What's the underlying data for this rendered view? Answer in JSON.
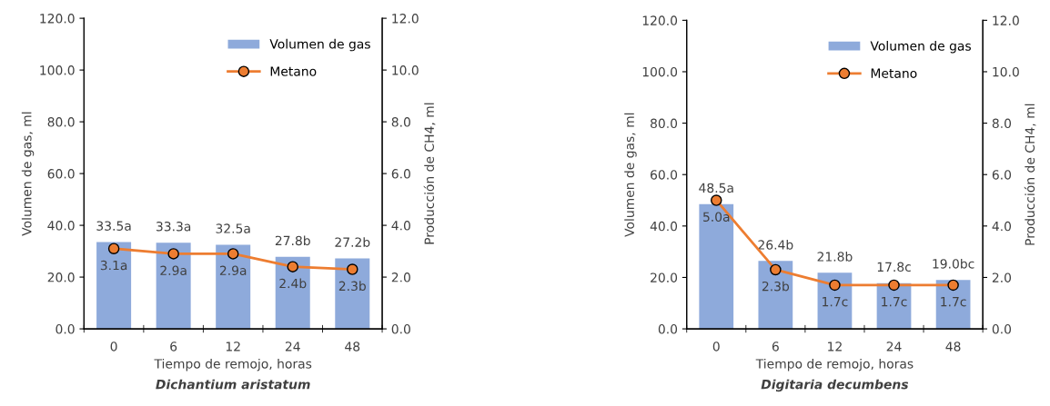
{
  "chart_data": [
    {
      "type": "bar",
      "categories": [
        "0",
        "6",
        "12",
        "24",
        "48"
      ],
      "xlabel": "Tiempo de remojo, horas",
      "ylabel": "Volumen de gas, ml",
      "y2label": "Producción de CH4, ml",
      "annotations": [
        "Dichantium aristatum"
      ],
      "ylim": [
        0,
        120
      ],
      "yticks": [
        {
          "value": 0,
          "label": "0.0"
        },
        {
          "value": 20,
          "label": "20.0"
        },
        {
          "value": 40,
          "label": "40.0"
        },
        {
          "value": 60,
          "label": "60.0"
        },
        {
          "value": 80,
          "label": "80.0"
        },
        {
          "value": 100,
          "label": "100.0"
        },
        {
          "value": 120,
          "label": "120.0"
        }
      ],
      "y2lim": [
        0,
        12
      ],
      "y2ticks": [
        {
          "value": 0,
          "label": "0.0"
        },
        {
          "value": 2,
          "label": "2.0"
        },
        {
          "value": 4,
          "label": "4.0"
        },
        {
          "value": 6,
          "label": "6.0"
        },
        {
          "value": 8,
          "label": "8.0"
        },
        {
          "value": 10,
          "label": "10.0"
        },
        {
          "value": 12,
          "label": "12.0"
        }
      ],
      "legend": "top right",
      "marker": "circle",
      "grid": false,
      "series": [
        {
          "name": "Volumen de gas",
          "color": "#8eaadb",
          "values": [
            33.5,
            33.3,
            32.5,
            27.8,
            27.2
          ],
          "value_labels": [
            "33.5a",
            "33.3a",
            "32.5a",
            "27.8b",
            "27.2b"
          ]
        },
        {
          "name": "Metano",
          "type": "line",
          "axis": "y2",
          "color": "#ed7d31",
          "values": [
            3.1,
            2.9,
            2.9,
            2.4,
            2.3
          ],
          "value_labels": [
            "3.1a",
            "2.9a",
            "2.9a",
            "2.4b",
            "2.3b"
          ]
        }
      ]
    },
    {
      "type": "bar",
      "categories": [
        "0",
        "6",
        "12",
        "24",
        "48"
      ],
      "xlabel": "Tiempo de remojo, horas",
      "ylabel": "Volumen de gas, ml",
      "y2label": "Producción de CH4, ml",
      "annotations": [
        "Digitaria decumbens"
      ],
      "ylim": [
        0,
        120
      ],
      "yticks": [
        {
          "value": 0,
          "label": "0.0"
        },
        {
          "value": 20,
          "label": "20.0"
        },
        {
          "value": 40,
          "label": "40.0"
        },
        {
          "value": 60,
          "label": "60.0"
        },
        {
          "value": 80,
          "label": "80.0"
        },
        {
          "value": 100,
          "label": "100.0"
        },
        {
          "value": 120,
          "label": "120.0"
        }
      ],
      "y2lim": [
        0,
        12
      ],
      "y2ticks": [
        {
          "value": 0,
          "label": "0.0"
        },
        {
          "value": 2,
          "label": "2.0"
        },
        {
          "value": 4,
          "label": "4.0"
        },
        {
          "value": 6,
          "label": "6.0"
        },
        {
          "value": 8,
          "label": "8.0"
        },
        {
          "value": 10,
          "label": "10.0"
        },
        {
          "value": 12,
          "label": "12.0"
        }
      ],
      "legend": "top right",
      "marker": "circle",
      "grid": false,
      "series": [
        {
          "name": "Volumen de gas",
          "color": "#8eaadb",
          "values": [
            48.5,
            26.4,
            21.8,
            17.8,
            19.0
          ],
          "value_labels": [
            "48.5a",
            "26.4b",
            "21.8b",
            "17.8c",
            "19.0bc"
          ]
        },
        {
          "name": "Metano",
          "type": "line",
          "axis": "y2",
          "color": "#ed7d31",
          "values": [
            5.0,
            2.3,
            1.7,
            1.7,
            1.7
          ],
          "value_labels": [
            "5.0a",
            "2.3b",
            "1.7c",
            "1.7c",
            "1.7c"
          ]
        }
      ]
    }
  ]
}
